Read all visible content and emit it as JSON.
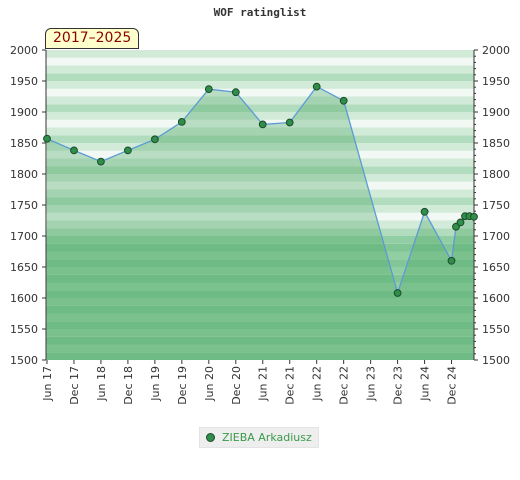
{
  "chart_data": {
    "type": "area",
    "title": "WOF ratinglist",
    "period_label": "2017–2025",
    "y_ticks": [
      1500,
      1550,
      1600,
      1650,
      1700,
      1750,
      1800,
      1850,
      1900,
      1950,
      2000
    ],
    "ylim": [
      1500,
      2000
    ],
    "x_ticks": [
      "Jun 17",
      "Dec 17",
      "Jun 18",
      "Dec 18",
      "Jun 19",
      "Dec 19",
      "Jun 20",
      "Dec 20",
      "Jun 21",
      "Dec 21",
      "Jun 22",
      "Dec 22",
      "Jun 23",
      "Dec 23",
      "Jun 24",
      "Dec 24"
    ],
    "series": [
      {
        "name": "ZIEBA Arkadiusz",
        "points": [
          {
            "x": "2017-06",
            "y": 1857
          },
          {
            "x": "2017-12",
            "y": 1838
          },
          {
            "x": "2018-06",
            "y": 1820
          },
          {
            "x": "2018-12",
            "y": 1838
          },
          {
            "x": "2019-06",
            "y": 1856
          },
          {
            "x": "2019-12",
            "y": 1884
          },
          {
            "x": "2020-06",
            "y": 1937
          },
          {
            "x": "2020-12",
            "y": 1932
          },
          {
            "x": "2021-06",
            "y": 1880
          },
          {
            "x": "2021-12",
            "y": 1883
          },
          {
            "x": "2022-06",
            "y": 1941
          },
          {
            "x": "2022-12",
            "y": 1918
          },
          {
            "x": "2023-12",
            "y": 1608
          },
          {
            "x": "2024-06",
            "y": 1739
          },
          {
            "x": "2024-12",
            "y": 1660
          },
          {
            "x": "2025-01",
            "y": 1715
          },
          {
            "x": "2025-02",
            "y": 1722
          },
          {
            "x": "2025-03",
            "y": 1732
          },
          {
            "x": "2025-04",
            "y": 1732
          },
          {
            "x": "2025-05",
            "y": 1731
          }
        ]
      }
    ],
    "band_colors": [
      "#82c596",
      "#92cea3",
      "#b2dcbe",
      "#d2ead8",
      "#f2f9f4",
      "#b2dcbe"
    ],
    "line_color": "#5b9bd5",
    "marker_color": "#2f8f4a",
    "grid": false,
    "legend_position": "bottom-center"
  }
}
